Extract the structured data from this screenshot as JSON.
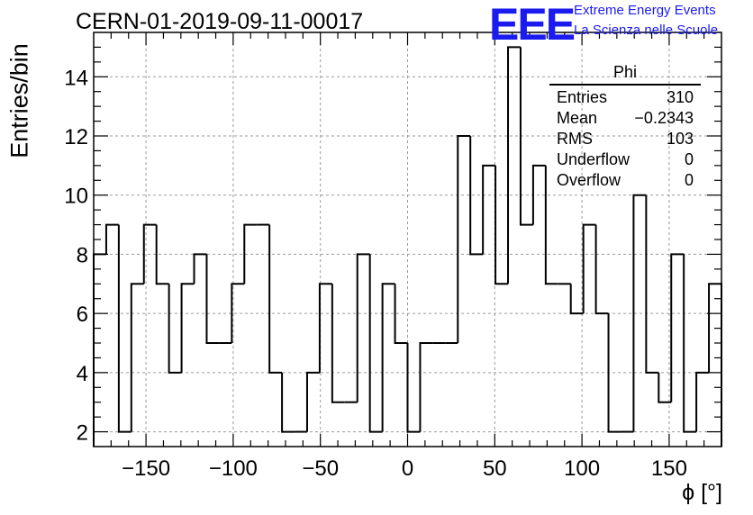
{
  "title": "CERN-01-2019-09-11-00017",
  "logo": {
    "text": "EEE",
    "line1": "Extreme Energy Events",
    "line2": "La Scienza nelle Scuole",
    "color": "#1b1bf0"
  },
  "stats_box": {
    "title": "Phi",
    "rows": [
      {
        "label": "Entries",
        "value": "310"
      },
      {
        "label": "Mean",
        "value": "−0.2343"
      },
      {
        "label": "RMS",
        "value": "103"
      },
      {
        "label": "Underflow",
        "value": "0"
      },
      {
        "label": "Overflow",
        "value": "0"
      }
    ]
  },
  "chart_data": {
    "type": "histogram",
    "xlabel": "ϕ [°]",
    "ylabel": "Entries/bin",
    "xlim": [
      -180,
      180
    ],
    "ylim": [
      1.5,
      15.5
    ],
    "bin_width": 7.2,
    "bin_edges_start": -180,
    "values": [
      8,
      9,
      2,
      7,
      9,
      7,
      4,
      7,
      8,
      5,
      5,
      7,
      9,
      9,
      4,
      2,
      2,
      4,
      7,
      3,
      3,
      8,
      2,
      7,
      5,
      2,
      5,
      5,
      5,
      12,
      8,
      11,
      7,
      15,
      9,
      11,
      7,
      7,
      6,
      9,
      6,
      2,
      2,
      10,
      4,
      3,
      8,
      2,
      4,
      7
    ],
    "xticks": [
      -150,
      -100,
      -50,
      0,
      50,
      100,
      150
    ],
    "xtick_labels": [
      "−150",
      "−100",
      "−50",
      "0",
      "50",
      "100",
      "150"
    ],
    "yticks": [
      2,
      4,
      6,
      8,
      10,
      12,
      14
    ],
    "ytick_labels": [
      "2",
      "4",
      "6",
      "8",
      "10",
      "12",
      "14"
    ],
    "grid": true,
    "line_color": "#000000",
    "grid_color": "#9a9a9a"
  }
}
